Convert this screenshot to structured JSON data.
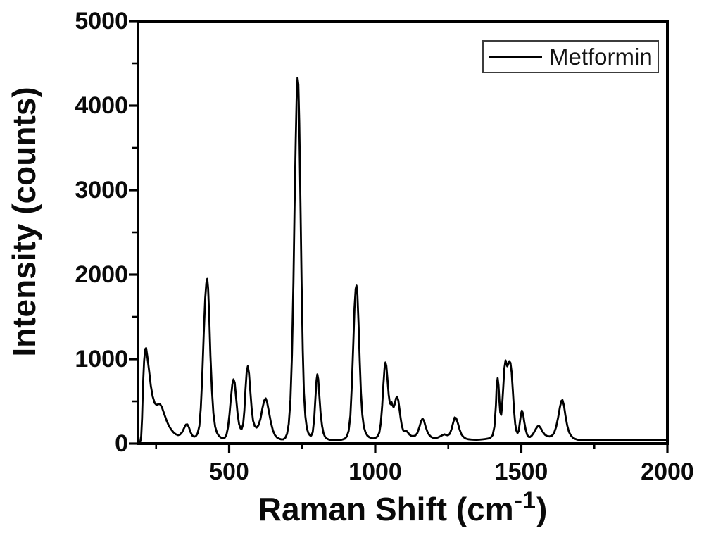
{
  "chart_data": {
    "type": "line",
    "title": "",
    "xlabel": "Raman Shift (cm-1)",
    "ylabel": "Intensity (counts)",
    "xlim": [
      188,
      2000
    ],
    "ylim": [
      0,
      5000
    ],
    "x_major_ticks": [
      500,
      1000,
      1500,
      2000
    ],
    "x_minor_ticks": [
      250,
      750,
      1250,
      1750
    ],
    "y_major_ticks": [
      0,
      1000,
      2000,
      3000,
      4000,
      5000
    ],
    "y_minor_ticks": [
      500,
      1500,
      2500,
      3500,
      4500
    ],
    "grid": false,
    "legend_position": "top-right",
    "line_color": "#000000",
    "frame_color": "#000000",
    "series": [
      {
        "name": "Metformin",
        "points": [
          [
            190,
            5
          ],
          [
            196,
            25
          ],
          [
            199,
            90
          ],
          [
            202,
            300
          ],
          [
            205,
            680
          ],
          [
            209,
            980
          ],
          [
            213,
            1120
          ],
          [
            216,
            1130
          ],
          [
            220,
            1030
          ],
          [
            226,
            860
          ],
          [
            232,
            680
          ],
          [
            238,
            560
          ],
          [
            245,
            480
          ],
          [
            252,
            455
          ],
          [
            258,
            470
          ],
          [
            264,
            465
          ],
          [
            270,
            430
          ],
          [
            277,
            360
          ],
          [
            285,
            280
          ],
          [
            293,
            215
          ],
          [
            301,
            170
          ],
          [
            309,
            135
          ],
          [
            317,
            112
          ],
          [
            325,
            100
          ],
          [
            332,
            108
          ],
          [
            339,
            135
          ],
          [
            346,
            185
          ],
          [
            352,
            225
          ],
          [
            357,
            228
          ],
          [
            362,
            195
          ],
          [
            368,
            135
          ],
          [
            374,
            95
          ],
          [
            380,
            82
          ],
          [
            386,
            88
          ],
          [
            392,
            120
          ],
          [
            398,
            210
          ],
          [
            403,
            420
          ],
          [
            408,
            800
          ],
          [
            413,
            1300
          ],
          [
            418,
            1720
          ],
          [
            422,
            1900
          ],
          [
            425,
            1950
          ],
          [
            428,
            1840
          ],
          [
            432,
            1480
          ],
          [
            436,
            1040
          ],
          [
            441,
            640
          ],
          [
            446,
            360
          ],
          [
            452,
            200
          ],
          [
            458,
            130
          ],
          [
            465,
            90
          ],
          [
            472,
            72
          ],
          [
            479,
            62
          ],
          [
            485,
            70
          ],
          [
            491,
            105
          ],
          [
            496,
            190
          ],
          [
            501,
            340
          ],
          [
            506,
            540
          ],
          [
            511,
            700
          ],
          [
            515,
            760
          ],
          [
            519,
            720
          ],
          [
            524,
            540
          ],
          [
            529,
            350
          ],
          [
            534,
            230
          ],
          [
            539,
            180
          ],
          [
            543,
            175
          ],
          [
            548,
            230
          ],
          [
            552,
            390
          ],
          [
            556,
            640
          ],
          [
            560,
            850
          ],
          [
            564,
            915
          ],
          [
            568,
            830
          ],
          [
            572,
            640
          ],
          [
            577,
            420
          ],
          [
            582,
            270
          ],
          [
            588,
            205
          ],
          [
            594,
            190
          ],
          [
            600,
            215
          ],
          [
            607,
            290
          ],
          [
            614,
            420
          ],
          [
            620,
            510
          ],
          [
            625,
            535
          ],
          [
            630,
            490
          ],
          [
            636,
            380
          ],
          [
            643,
            250
          ],
          [
            650,
            155
          ],
          [
            657,
            100
          ],
          [
            664,
            72
          ],
          [
            671,
            58
          ],
          [
            678,
            50
          ],
          [
            685,
            50
          ],
          [
            692,
            68
          ],
          [
            698,
            115
          ],
          [
            704,
            230
          ],
          [
            710,
            520
          ],
          [
            715,
            1050
          ],
          [
            720,
            1900
          ],
          [
            724,
            2800
          ],
          [
            728,
            3600
          ],
          [
            731,
            4100
          ],
          [
            734,
            4330
          ],
          [
            737,
            4250
          ],
          [
            740,
            3800
          ],
          [
            744,
            2900
          ],
          [
            748,
            1900
          ],
          [
            752,
            1100
          ],
          [
            756,
            600
          ],
          [
            761,
            320
          ],
          [
            766,
            180
          ],
          [
            771,
            125
          ],
          [
            776,
            100
          ],
          [
            781,
            95
          ],
          [
            786,
            135
          ],
          [
            791,
            290
          ],
          [
            795,
            520
          ],
          [
            799,
            750
          ],
          [
            802,
            820
          ],
          [
            805,
            760
          ],
          [
            809,
            560
          ],
          [
            813,
            360
          ],
          [
            818,
            210
          ],
          [
            823,
            125
          ],
          [
            828,
            82
          ],
          [
            834,
            60
          ],
          [
            841,
            48
          ],
          [
            848,
            42
          ],
          [
            856,
            40
          ],
          [
            864,
            44
          ],
          [
            872,
            40
          ],
          [
            880,
            42
          ],
          [
            888,
            48
          ],
          [
            896,
            58
          ],
          [
            903,
            85
          ],
          [
            909,
            150
          ],
          [
            915,
            330
          ],
          [
            920,
            700
          ],
          [
            925,
            1200
          ],
          [
            929,
            1600
          ],
          [
            933,
            1830
          ],
          [
            936,
            1870
          ],
          [
            939,
            1760
          ],
          [
            943,
            1420
          ],
          [
            947,
            980
          ],
          [
            951,
            600
          ],
          [
            956,
            340
          ],
          [
            961,
            200
          ],
          [
            967,
            130
          ],
          [
            973,
            95
          ],
          [
            980,
            75
          ],
          [
            987,
            65
          ],
          [
            994,
            62
          ],
          [
            1001,
            68
          ],
          [
            1008,
            85
          ],
          [
            1014,
            130
          ],
          [
            1019,
            240
          ],
          [
            1024,
            450
          ],
          [
            1028,
            700
          ],
          [
            1032,
            900
          ],
          [
            1035,
            960
          ],
          [
            1038,
            920
          ],
          [
            1042,
            760
          ],
          [
            1046,
            580
          ],
          [
            1050,
            480
          ],
          [
            1053,
            465
          ],
          [
            1056,
            490
          ],
          [
            1059,
            455
          ],
          [
            1063,
            430
          ],
          [
            1067,
            470
          ],
          [
            1071,
            535
          ],
          [
            1075,
            555
          ],
          [
            1079,
            510
          ],
          [
            1083,
            410
          ],
          [
            1087,
            300
          ],
          [
            1091,
            210
          ],
          [
            1096,
            155
          ],
          [
            1101,
            148
          ],
          [
            1106,
            152
          ],
          [
            1111,
            135
          ],
          [
            1117,
            108
          ],
          [
            1123,
            92
          ],
          [
            1130,
            88
          ],
          [
            1137,
            95
          ],
          [
            1144,
            125
          ],
          [
            1151,
            195
          ],
          [
            1157,
            265
          ],
          [
            1162,
            295
          ],
          [
            1167,
            270
          ],
          [
            1172,
            205
          ],
          [
            1178,
            145
          ],
          [
            1184,
            105
          ],
          [
            1191,
            80
          ],
          [
            1198,
            68
          ],
          [
            1206,
            65
          ],
          [
            1214,
            72
          ],
          [
            1222,
            85
          ],
          [
            1230,
            100
          ],
          [
            1237,
            110
          ],
          [
            1243,
            102
          ],
          [
            1249,
            98
          ],
          [
            1255,
            115
          ],
          [
            1261,
            170
          ],
          [
            1267,
            250
          ],
          [
            1272,
            310
          ],
          [
            1277,
            300
          ],
          [
            1283,
            240
          ],
          [
            1289,
            165
          ],
          [
            1295,
            110
          ],
          [
            1302,
            78
          ],
          [
            1310,
            60
          ],
          [
            1318,
            52
          ],
          [
            1327,
            48
          ],
          [
            1337,
            46
          ],
          [
            1347,
            45
          ],
          [
            1357,
            47
          ],
          [
            1367,
            50
          ],
          [
            1377,
            54
          ],
          [
            1387,
            60
          ],
          [
            1395,
            72
          ],
          [
            1402,
            100
          ],
          [
            1408,
            200
          ],
          [
            1413,
            450
          ],
          [
            1416,
            700
          ],
          [
            1419,
            775
          ],
          [
            1422,
            690
          ],
          [
            1425,
            500
          ],
          [
            1428,
            370
          ],
          [
            1431,
            340
          ],
          [
            1434,
            430
          ],
          [
            1438,
            660
          ],
          [
            1442,
            890
          ],
          [
            1446,
            985
          ],
          [
            1449,
            950
          ],
          [
            1452,
            915
          ],
          [
            1456,
            945
          ],
          [
            1459,
            975
          ],
          [
            1463,
            955
          ],
          [
            1467,
            840
          ],
          [
            1471,
            620
          ],
          [
            1475,
            400
          ],
          [
            1479,
            235
          ],
          [
            1483,
            155
          ],
          [
            1487,
            125
          ],
          [
            1491,
            150
          ],
          [
            1495,
            250
          ],
          [
            1499,
            355
          ],
          [
            1502,
            390
          ],
          [
            1506,
            355
          ],
          [
            1510,
            260
          ],
          [
            1515,
            165
          ],
          [
            1520,
            105
          ],
          [
            1525,
            80
          ],
          [
            1530,
            78
          ],
          [
            1536,
            95
          ],
          [
            1543,
            130
          ],
          [
            1550,
            175
          ],
          [
            1556,
            205
          ],
          [
            1561,
            208
          ],
          [
            1567,
            180
          ],
          [
            1574,
            135
          ],
          [
            1581,
            105
          ],
          [
            1589,
            88
          ],
          [
            1597,
            85
          ],
          [
            1605,
            95
          ],
          [
            1612,
            125
          ],
          [
            1619,
            195
          ],
          [
            1626,
            310
          ],
          [
            1632,
            430
          ],
          [
            1637,
            505
          ],
          [
            1641,
            515
          ],
          [
            1646,
            450
          ],
          [
            1651,
            330
          ],
          [
            1657,
            215
          ],
          [
            1663,
            140
          ],
          [
            1669,
            100
          ],
          [
            1676,
            72
          ],
          [
            1684,
            56
          ],
          [
            1693,
            46
          ],
          [
            1703,
            42
          ],
          [
            1715,
            40
          ],
          [
            1727,
            44
          ],
          [
            1739,
            38
          ],
          [
            1751,
            42
          ],
          [
            1763,
            46
          ],
          [
            1775,
            40
          ],
          [
            1787,
            44
          ],
          [
            1799,
            38
          ],
          [
            1811,
            42
          ],
          [
            1823,
            46
          ],
          [
            1835,
            40
          ],
          [
            1847,
            38
          ],
          [
            1859,
            44
          ],
          [
            1871,
            40
          ],
          [
            1883,
            42
          ],
          [
            1895,
            38
          ],
          [
            1907,
            44
          ],
          [
            1919,
            40
          ],
          [
            1931,
            42
          ],
          [
            1943,
            38
          ],
          [
            1955,
            42
          ],
          [
            1967,
            40
          ],
          [
            1979,
            38
          ],
          [
            1990,
            42
          ],
          [
            2000,
            40
          ]
        ]
      }
    ]
  },
  "axes": {
    "ylabel": "Intensity (counts)",
    "xlabel_prefix": "Raman Shift (cm",
    "xlabel_sup": "-1",
    "xlabel_suffix": ")"
  },
  "legend": {
    "label": "Metformin"
  }
}
